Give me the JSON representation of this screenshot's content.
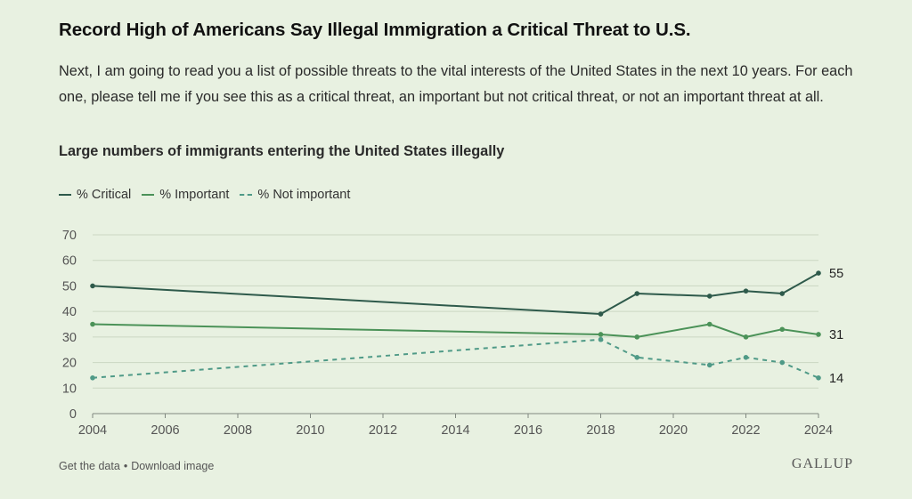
{
  "title": "Record High of Americans Say Illegal Immigration a Critical Threat to U.S.",
  "description": "Next, I am going to read you a list of possible threats to the vital interests of the United States in the next 10 years. For each one, please tell me if you see this as a critical threat, an important but not critical threat, or not an important threat at all.",
  "subtitle": "Large numbers of immigrants entering the United States illegally",
  "footer": {
    "get_data": "Get the data",
    "separator": "•",
    "download": "Download image"
  },
  "brand": "GALLUP",
  "colors": {
    "critical": "#2e5a4b",
    "important": "#4b9258",
    "not_important": "#4f9a87",
    "grid": "#cbd7c2",
    "axis": "#7f877f"
  },
  "chart_data": {
    "type": "line",
    "title": "Record High of Americans Say Illegal Immigration a Critical Threat to U.S.",
    "xlabel": "",
    "ylabel": "",
    "xlim": [
      2004,
      2024
    ],
    "ylim": [
      0,
      70
    ],
    "x_ticks": [
      2004,
      2006,
      2008,
      2010,
      2012,
      2014,
      2016,
      2018,
      2020,
      2022,
      2024
    ],
    "y_ticks": [
      0,
      10,
      20,
      30,
      40,
      50,
      60,
      70
    ],
    "grid": true,
    "legend_position": "top-left",
    "x": [
      2004,
      2018,
      2019,
      2021,
      2022,
      2023,
      2024
    ],
    "series": [
      {
        "name": "% Critical",
        "key": "critical",
        "style": "solid",
        "values": [
          50,
          39,
          47,
          46,
          48,
          47,
          55
        ],
        "end_label": "55"
      },
      {
        "name": "% Important",
        "key": "important",
        "style": "solid",
        "values": [
          35,
          31,
          30,
          35,
          30,
          33,
          31
        ],
        "end_label": "31"
      },
      {
        "name": "% Not important",
        "key": "not_important",
        "style": "dashed",
        "values": [
          14,
          29,
          22,
          19,
          22,
          20,
          14
        ],
        "end_label": "14"
      }
    ]
  }
}
